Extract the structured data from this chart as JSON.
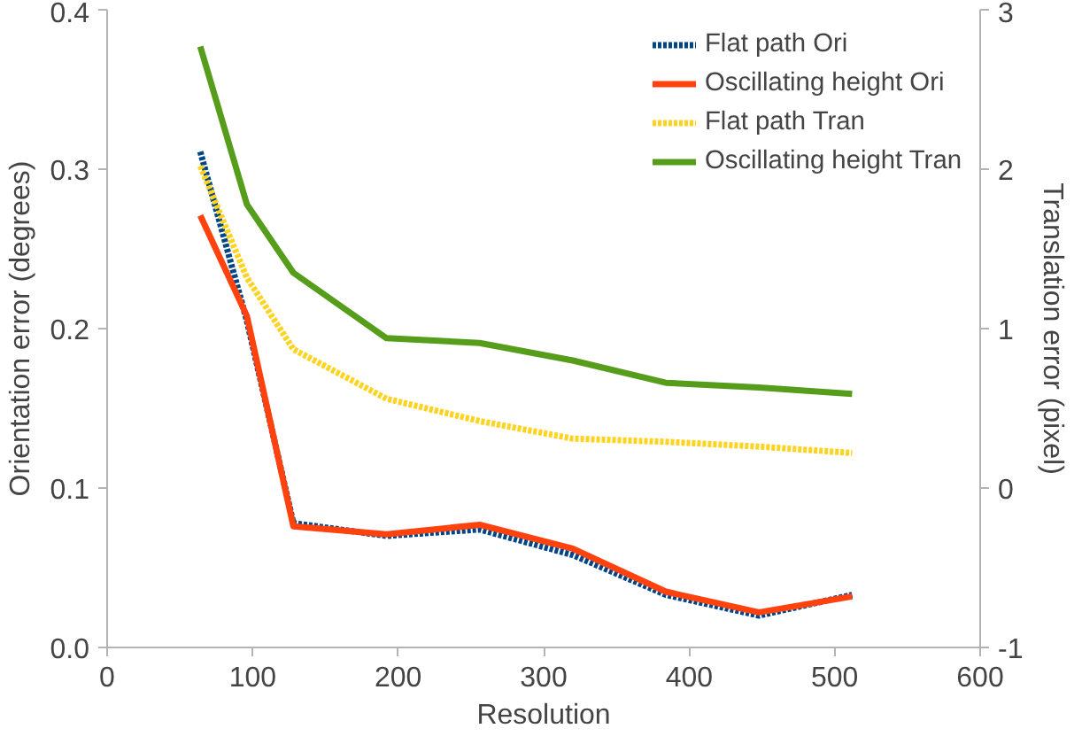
{
  "chart_data": {
    "type": "line",
    "xlabel": "Resolution",
    "ylabel": "Orientation error (degrees)",
    "y2label": "Translation error (pixel)",
    "x": [
      64,
      96,
      128,
      192,
      256,
      320,
      384,
      448,
      512
    ],
    "xlim": [
      0,
      600
    ],
    "xticks": [
      0,
      100,
      200,
      300,
      400,
      500,
      600
    ],
    "ylim": [
      0,
      0.4
    ],
    "yticks": [
      {
        "value": 0,
        "label": "0.0"
      },
      0.1,
      0.2,
      0.3,
      0.4
    ],
    "y2lim": [
      -1,
      3
    ],
    "y2ticks": [
      -1,
      0,
      1,
      2,
      3
    ],
    "grid": false,
    "legend": "top right",
    "marker": "none",
    "series": [
      {
        "name": "Flat path Ori",
        "color": "#004586",
        "line_style": "dotted",
        "values": [
          0.311,
          0.205,
          0.078,
          0.07,
          0.074,
          0.058,
          0.033,
          0.02,
          0.033
        ]
      },
      {
        "name": "Oscillating height Ori",
        "color": "#ff420e",
        "line_style": "solid",
        "values": [
          0.271,
          0.208,
          0.076,
          0.071,
          0.077,
          0.062,
          0.035,
          0.022,
          0.032
        ]
      },
      {
        "name": "Flat path Tran",
        "color": "#ffd320",
        "line_style": "dotted",
        "axis": "y2",
        "values": [
          2.02,
          1.32,
          0.87,
          0.56,
          0.42,
          0.31,
          0.29,
          0.26,
          0.22
        ]
      },
      {
        "name": "Oscillating height Tran",
        "color": "#579d1c",
        "line_style": "solid",
        "axis": "y2",
        "values": [
          2.77,
          1.78,
          1.35,
          0.94,
          0.91,
          0.8,
          0.66,
          0.63,
          0.59
        ]
      }
    ]
  }
}
